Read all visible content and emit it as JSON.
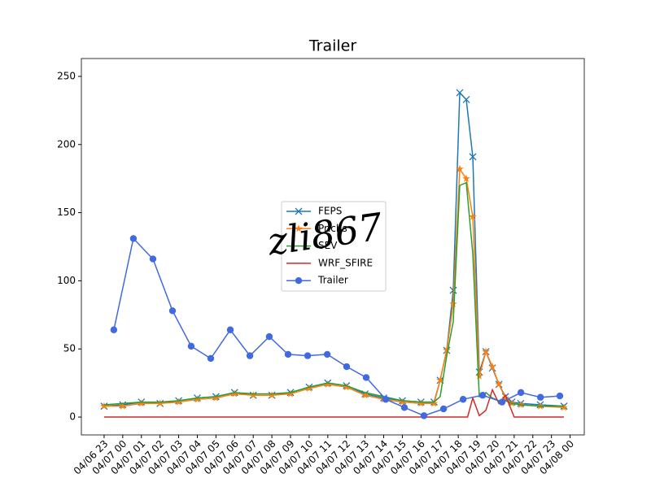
{
  "chart_data": {
    "type": "line",
    "title": "Trailer",
    "watermark": "zli867",
    "x": [
      0,
      1,
      2,
      3,
      4,
      5,
      6,
      7,
      8,
      9,
      10,
      11,
      12,
      13,
      14,
      15,
      16,
      17,
      17.7,
      18.03,
      18.38,
      18.73,
      19.08,
      19.43,
      19.78,
      20.13,
      20.48,
      20.83,
      21.18,
      21.53,
      21.88,
      22.35,
      23.4,
      24.67
    ],
    "series": [
      {
        "name": "FEPS",
        "color": "#1f77b4",
        "marker": "x",
        "values": [
          8,
          9,
          11,
          10,
          12,
          14,
          15,
          18,
          16,
          16,
          18,
          22,
          25,
          23,
          17,
          14,
          12,
          11,
          11,
          27,
          49,
          93,
          238,
          233,
          191,
          33,
          48,
          36,
          24,
          15,
          11,
          10,
          9,
          8
        ]
      },
      {
        "name": "Prichs",
        "color": "#ff7f0e",
        "marker": "star",
        "values": [
          8,
          8,
          10,
          10,
          11,
          13,
          14,
          17,
          16,
          16,
          17,
          21,
          24,
          22,
          16,
          13,
          11,
          10,
          10,
          27,
          49,
          83,
          182,
          175,
          147,
          30,
          48,
          37,
          24,
          14,
          10,
          9,
          8,
          7
        ]
      },
      {
        "name": "SEV",
        "color": "#2ca02c",
        "marker": "none",
        "values": [
          9,
          10,
          11,
          11,
          12,
          14,
          15,
          18,
          17,
          17,
          18,
          22,
          25,
          23,
          18,
          15,
          12,
          11,
          11,
          15,
          45,
          70,
          170,
          172,
          120,
          15,
          18,
          14,
          12,
          12,
          10,
          9,
          8,
          8
        ]
      },
      {
        "name": "WRF_SFIRE",
        "color": "#d62728",
        "marker": "none",
        "x": [
          0,
          19.5,
          19.78,
          20.13,
          20.48,
          20.83,
          21.18,
          21.53,
          22.0,
          24.67
        ],
        "values": [
          0,
          0,
          14,
          1,
          5,
          20,
          10,
          16,
          0,
          0
        ]
      },
      {
        "name": "Trailer",
        "color": "#4169e1",
        "marker": "circle",
        "x": [
          0.52,
          1.57,
          2.62,
          3.67,
          4.67,
          5.72,
          6.77,
          7.82,
          8.86,
          9.87,
          10.92,
          11.97,
          13.01,
          14.06,
          15.11,
          16.11,
          17.16,
          18.21,
          19.26,
          20.31,
          21.35,
          22.36,
          23.41,
          24.45
        ],
        "values": [
          64,
          131,
          116,
          78,
          52,
          43,
          64,
          45,
          59,
          46,
          45,
          46,
          37,
          29,
          13,
          7,
          1,
          6,
          13,
          16,
          11,
          18,
          14.5,
          15.5
        ]
      }
    ],
    "xlim": [
      -1.22,
      25.76
    ],
    "xticks": [
      {
        "value": 0,
        "label": "04/06 23"
      },
      {
        "value": 1,
        "label": "04/07 00"
      },
      {
        "value": 2,
        "label": "04/07 01"
      },
      {
        "value": 3,
        "label": "04/07 02"
      },
      {
        "value": 4,
        "label": "04/07 03"
      },
      {
        "value": 5,
        "label": "04/07 04"
      },
      {
        "value": 6,
        "label": "04/07 05"
      },
      {
        "value": 7,
        "label": "04/07 06"
      },
      {
        "value": 8,
        "label": "04/07 07"
      },
      {
        "value": 9,
        "label": "04/07 08"
      },
      {
        "value": 10,
        "label": "04/07 09"
      },
      {
        "value": 11,
        "label": "04/07 10"
      },
      {
        "value": 12,
        "label": "04/07 11"
      },
      {
        "value": 13,
        "label": "04/07 12"
      },
      {
        "value": 14,
        "label": "04/07 13"
      },
      {
        "value": 15,
        "label": "04/07 14"
      },
      {
        "value": 16,
        "label": "04/07 15"
      },
      {
        "value": 17,
        "label": "04/07 16"
      },
      {
        "value": 18,
        "label": "04/07 17"
      },
      {
        "value": 19,
        "label": "04/07 18"
      },
      {
        "value": 20,
        "label": "04/07 19"
      },
      {
        "value": 21,
        "label": "04/07 20"
      },
      {
        "value": 22,
        "label": "04/07 21"
      },
      {
        "value": 23,
        "label": "04/07 22"
      },
      {
        "value": 24,
        "label": "04/07 23"
      },
      {
        "value": 25,
        "label": "04/08 00"
      }
    ],
    "ylim": [
      -13.1,
      263.1
    ],
    "yticks": [
      0,
      50,
      100,
      150,
      200,
      250
    ],
    "legend": "center"
  }
}
